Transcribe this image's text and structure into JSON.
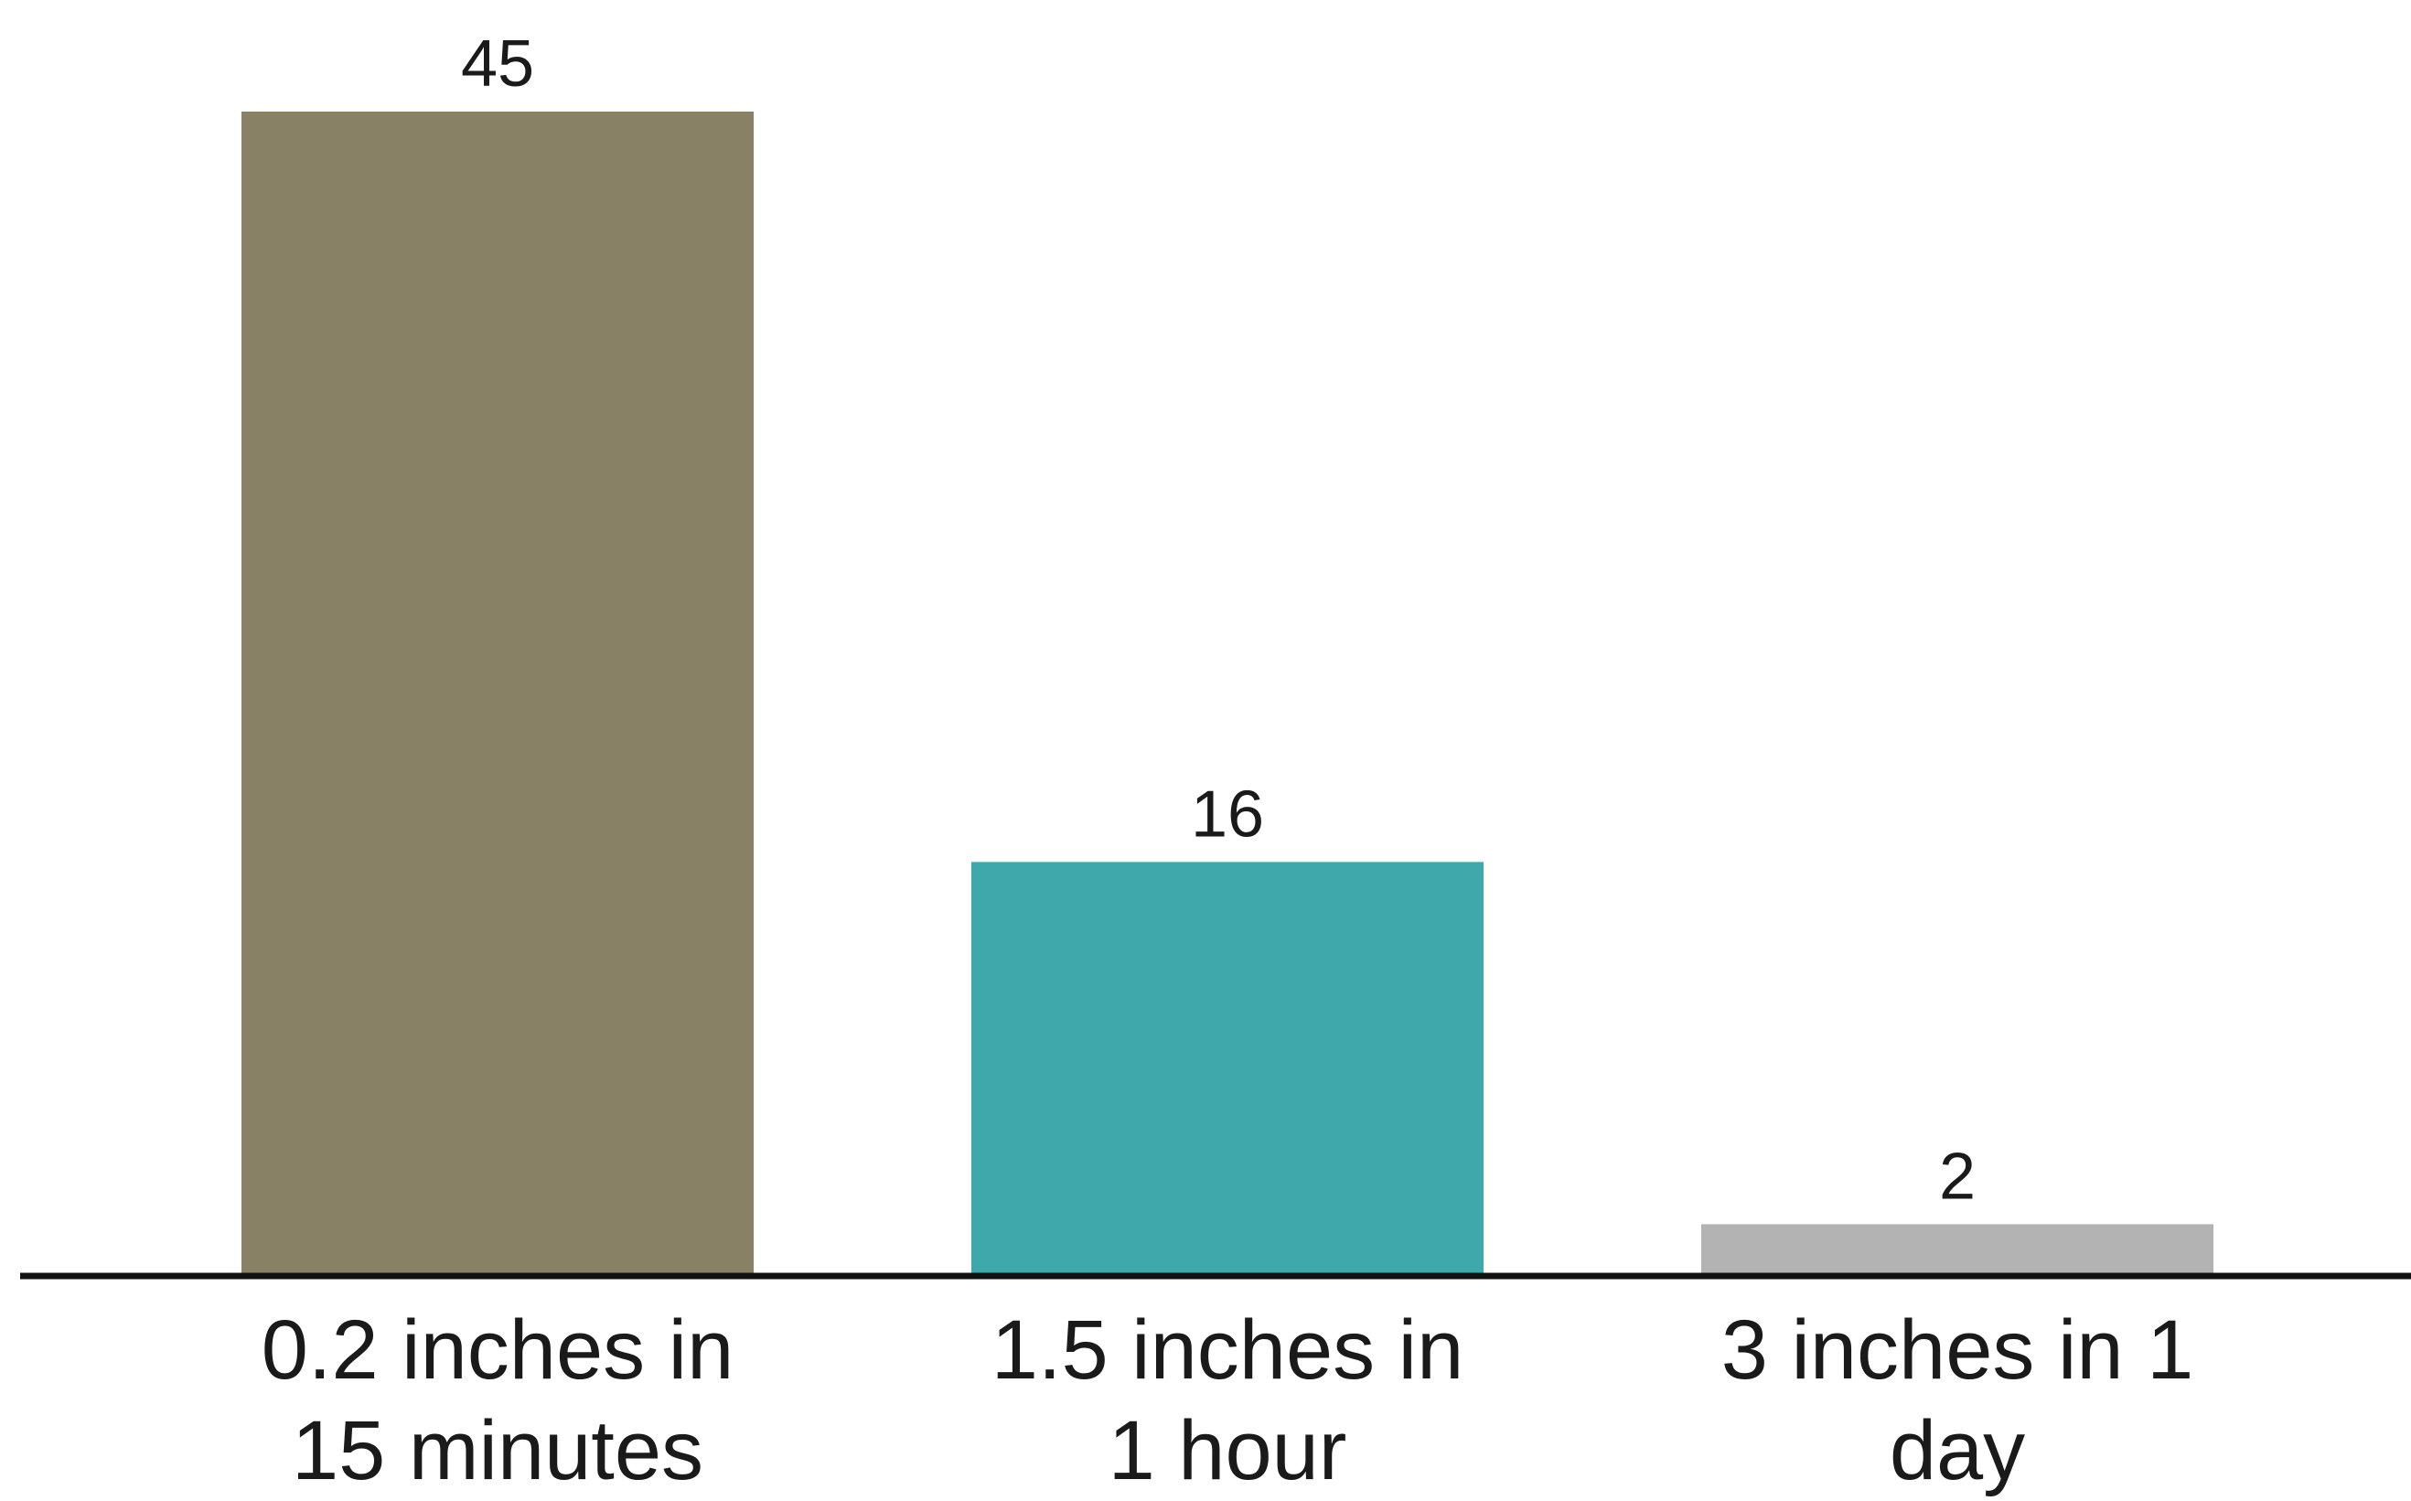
{
  "chart_data": {
    "type": "bar",
    "categories": [
      [
        "0.2 inches in",
        "15 minutes"
      ],
      [
        "1.5 inches in",
        "1 hour"
      ],
      [
        "3 inches in 1",
        "day"
      ]
    ],
    "values": [
      45,
      16,
      2
    ],
    "value_labels": [
      "45",
      "16",
      "2"
    ],
    "colors": [
      "#888165",
      "#3ea8ab",
      "#b3b3b3"
    ],
    "axis_color": "#111111",
    "ylim": [
      0,
      45
    ],
    "grid": false
  }
}
